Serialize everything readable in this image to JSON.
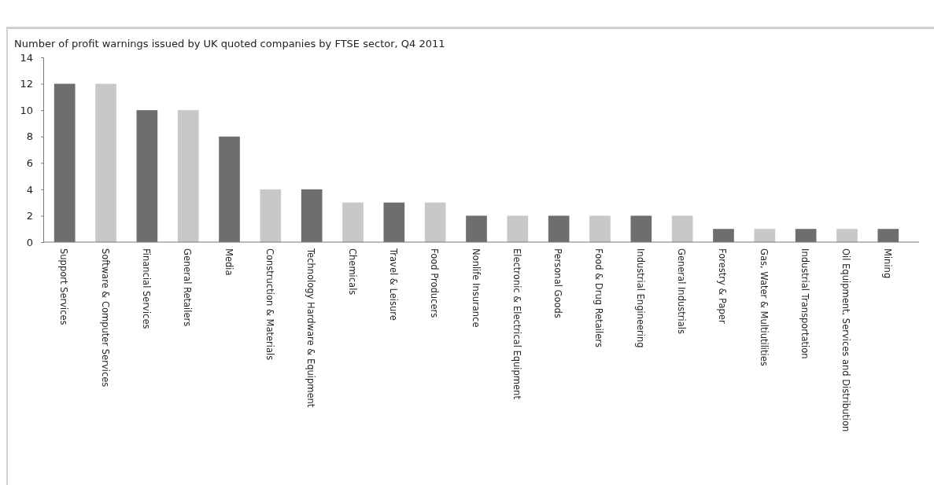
{
  "chart_data": {
    "type": "bar",
    "title": "Number of profit warnings issued by UK quoted companies by FTSE sector, Q4 2011",
    "categories": [
      "Support Services",
      "Software & Computer Services",
      "Financial Services",
      "General Retailers",
      "Media",
      "Construction & Materials",
      "Technology Hardware & Equipment",
      "Chemicals",
      "Travel & Leisure",
      "Food Producers",
      "Nonlife Insurance",
      "Electronic & Electrical Equipment",
      "Personal Goods",
      "Food & Drug Retailers",
      "Industrial Engineering",
      "General Industrials",
      "Forestry & Paper",
      "Gas, Water & Multiutilities",
      "Industrial Transportation",
      "Oil Equipment, Services and Distribution",
      "Mining"
    ],
    "values": [
      12,
      12,
      10,
      10,
      8,
      4,
      4,
      3,
      3,
      3,
      2,
      2,
      2,
      2,
      2,
      2,
      1,
      1,
      1,
      1,
      1
    ],
    "colors": [
      "#6d6e70",
      "#c7c8ca",
      "#6d6e70",
      "#c7c8ca",
      "#6d6e70",
      "#c7c8ca",
      "#6d6e70",
      "#c7c8ca",
      "#6d6e70",
      "#c7c8ca",
      "#6d6e70",
      "#c7c8ca",
      "#6d6e70",
      "#c7c8ca",
      "#6d6e70",
      "#c7c8ca",
      "#6d6e70",
      "#c7c8ca",
      "#6d6e70",
      "#c7c8ca",
      "#6d6e70"
    ],
    "ylim": [
      0,
      14
    ],
    "yticks": [
      0,
      2,
      4,
      6,
      8,
      10,
      12,
      14
    ],
    "grid": false
  }
}
